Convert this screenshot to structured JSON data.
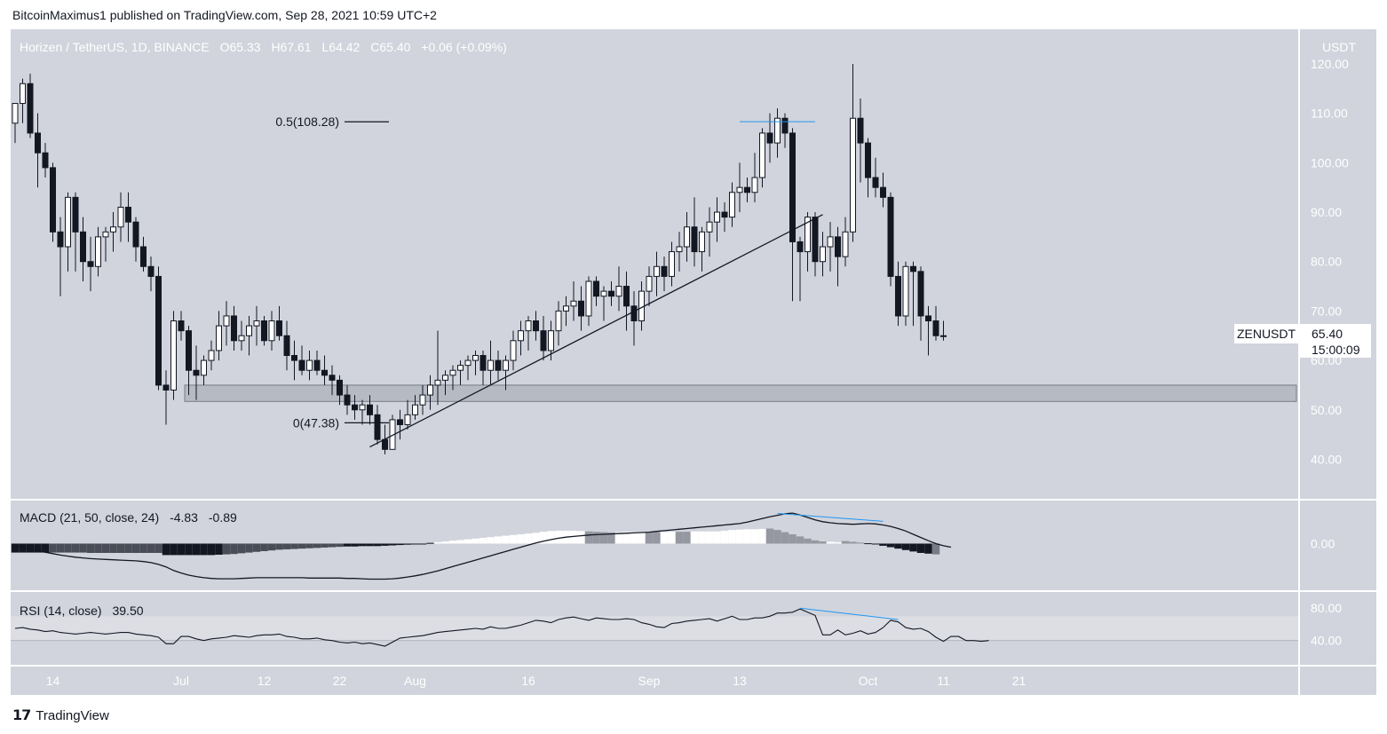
{
  "header": {
    "publisher_line": "BitcoinMaximus1 published on TradingView.com, Sep 28, 2021 10:59 UTC+2"
  },
  "footer": {
    "brand": "TradingView"
  },
  "colors": {
    "panel_bg": "#d1d4dc",
    "zone_fill": "#b2b5be",
    "bull": "#ffffff",
    "bear": "#131722",
    "divergence": "#2196f3",
    "rsi_band": "#dcdee4"
  },
  "chart_data": [
    {
      "type": "candlestick",
      "symbol_line": {
        "name": "Horizen / TetherUS, 1D, BINANCE",
        "o_label": "O",
        "o": "65.33",
        "h_label": "H",
        "h": "67.61",
        "l_label": "L",
        "l": "64.42",
        "c_label": "C",
        "c": "65.40",
        "change": "+0.06 (+0.09%)"
      },
      "currency": "USDT",
      "y_ticks": [
        "120.00",
        "110.00",
        "100.00",
        "90.00",
        "80.00",
        "70.00",
        "60.00",
        "50.00",
        "40.00"
      ],
      "y_tick_values": [
        120,
        110,
        100,
        90,
        80,
        70,
        60,
        50,
        40
      ],
      "ylim": [
        32,
        127
      ],
      "x_ticks": [
        {
          "label": "14",
          "day": 5
        },
        {
          "label": "Jul",
          "day": 22
        },
        {
          "label": "12",
          "day": 33
        },
        {
          "label": "22",
          "day": 43
        },
        {
          "label": "Aug",
          "day": 53
        },
        {
          "label": "16",
          "day": 68
        },
        {
          "label": "Sep",
          "day": 84
        },
        {
          "label": "13",
          "day": 96
        },
        {
          "label": "Oct",
          "day": 113
        },
        {
          "label": "11",
          "day": 123
        },
        {
          "label": "21",
          "day": 133
        }
      ],
      "candles": [
        [
          108,
          112,
          104,
          112
        ],
        [
          112,
          117,
          108,
          116
        ],
        [
          116,
          118,
          105,
          106
        ],
        [
          106,
          110,
          95,
          102
        ],
        [
          102,
          104,
          97,
          99
        ],
        [
          99,
          100,
          84,
          86
        ],
        [
          86,
          89,
          73,
          83
        ],
        [
          83,
          94,
          78,
          93
        ],
        [
          93,
          94,
          78,
          86
        ],
        [
          86,
          89,
          76,
          80
        ],
        [
          80,
          85,
          74,
          79
        ],
        [
          79,
          87,
          77,
          85
        ],
        [
          85,
          87,
          80,
          86
        ],
        [
          86,
          90,
          82,
          87
        ],
        [
          87,
          94,
          84,
          91
        ],
        [
          91,
          94,
          84,
          88
        ],
        [
          88,
          89,
          80,
          83
        ],
        [
          83,
          85,
          78,
          79
        ],
        [
          79,
          81,
          74,
          77
        ],
        [
          77,
          79,
          54,
          55
        ],
        [
          55,
          58,
          47,
          54
        ],
        [
          54,
          70,
          52,
          68
        ],
        [
          68,
          70,
          64,
          66
        ],
        [
          66,
          67,
          53,
          58
        ],
        [
          58,
          63,
          52,
          57
        ],
        [
          57,
          61,
          55,
          60
        ],
        [
          60,
          64,
          58,
          62
        ],
        [
          62,
          70,
          60,
          67
        ],
        [
          67,
          72,
          63,
          69
        ],
        [
          69,
          71,
          62,
          64
        ],
        [
          64,
          68,
          62,
          65
        ],
        [
          65,
          69,
          61,
          67
        ],
        [
          67,
          71,
          63,
          68
        ],
        [
          68,
          69,
          63,
          64
        ],
        [
          64,
          70,
          62,
          68
        ],
        [
          68,
          71,
          64,
          65
        ],
        [
          65,
          68,
          58,
          61
        ],
        [
          61,
          64,
          56,
          60
        ],
        [
          60,
          63,
          57,
          58
        ],
        [
          58,
          62,
          56,
          60
        ],
        [
          60,
          62,
          57,
          58
        ],
        [
          58,
          61,
          55,
          57
        ],
        [
          57,
          59,
          53,
          56
        ],
        [
          56,
          57,
          51,
          53
        ],
        [
          53,
          55,
          49,
          51
        ],
        [
          51,
          53,
          48,
          50
        ],
        [
          50,
          52,
          47,
          51
        ],
        [
          51,
          53,
          47,
          49
        ],
        [
          49,
          51,
          43,
          44
        ],
        [
          44,
          47,
          41,
          42
        ],
        [
          42,
          49,
          42,
          48
        ],
        [
          48,
          50,
          44,
          47
        ],
        [
          47,
          52,
          46,
          49
        ],
        [
          49,
          53,
          48,
          51
        ],
        [
          51,
          55,
          49,
          53
        ],
        [
          53,
          57,
          50,
          55
        ],
        [
          55,
          66,
          51,
          56
        ],
        [
          56,
          58,
          53,
          57
        ],
        [
          57,
          59,
          54,
          58
        ],
        [
          58,
          60,
          55,
          59
        ],
        [
          59,
          61,
          56,
          60
        ],
        [
          60,
          62,
          57,
          61
        ],
        [
          61,
          62,
          55,
          58
        ],
        [
          58,
          64,
          55,
          60
        ],
        [
          60,
          62,
          56,
          58
        ],
        [
          58,
          61,
          54,
          60
        ],
        [
          60,
          66,
          58,
          64
        ],
        [
          64,
          68,
          61,
          66
        ],
        [
          66,
          69,
          62,
          68
        ],
        [
          68,
          70,
          64,
          66
        ],
        [
          66,
          69,
          60,
          62
        ],
        [
          62,
          68,
          60,
          66
        ],
        [
          66,
          72,
          63,
          70
        ],
        [
          70,
          73,
          67,
          71
        ],
        [
          71,
          76,
          68,
          72
        ],
        [
          72,
          75,
          66,
          69
        ],
        [
          69,
          77,
          67,
          76
        ],
        [
          76,
          77,
          71,
          73
        ],
        [
          73,
          75,
          68,
          74
        ],
        [
          74,
          76,
          71,
          73
        ],
        [
          73,
          79,
          70,
          75
        ],
        [
          75,
          78,
          66,
          71
        ],
        [
          71,
          74,
          63,
          68
        ],
        [
          68,
          76,
          66,
          74
        ],
        [
          74,
          79,
          71,
          77
        ],
        [
          77,
          82,
          73,
          79
        ],
        [
          79,
          81,
          74,
          77
        ],
        [
          77,
          84,
          75,
          82
        ],
        [
          82,
          86,
          78,
          83
        ],
        [
          83,
          90,
          80,
          87
        ],
        [
          87,
          93,
          79,
          82
        ],
        [
          82,
          87,
          78,
          86
        ],
        [
          86,
          91,
          81,
          88
        ],
        [
          88,
          93,
          84,
          90
        ],
        [
          90,
          92,
          86,
          89
        ],
        [
          89,
          96,
          87,
          94
        ],
        [
          94,
          100,
          90,
          95
        ],
        [
          95,
          97,
          92,
          94
        ],
        [
          94,
          102,
          92,
          97
        ],
        [
          97,
          107,
          95,
          106
        ],
        [
          106,
          110,
          100,
          104
        ],
        [
          104,
          111,
          101,
          109
        ],
        [
          109,
          110,
          103,
          106
        ],
        [
          106,
          107,
          72,
          84
        ],
        [
          84,
          85,
          72,
          82
        ],
        [
          82,
          90,
          78,
          89
        ],
        [
          89,
          90,
          77,
          80
        ],
        [
          80,
          86,
          77,
          83
        ],
        [
          83,
          88,
          78,
          85
        ],
        [
          85,
          87,
          75,
          81
        ],
        [
          81,
          89,
          79,
          86
        ],
        [
          86,
          120,
          84,
          109
        ],
        [
          109,
          113,
          96,
          104
        ],
        [
          104,
          105,
          93,
          97
        ],
        [
          97,
          101,
          93,
          95
        ],
        [
          95,
          98,
          91,
          93
        ],
        [
          93,
          94,
          75,
          77
        ],
        [
          77,
          80,
          67,
          69
        ],
        [
          69,
          80,
          67,
          79
        ],
        [
          79,
          80,
          67,
          78
        ],
        [
          78,
          79,
          64,
          69
        ],
        [
          69,
          71,
          61,
          68
        ],
        [
          68,
          71,
          64,
          65
        ],
        [
          65,
          68,
          64,
          65
        ]
      ],
      "support_zone": {
        "low": 51.7,
        "high": 55.0
      },
      "trendline": {
        "from": {
          "day": 47,
          "price": 42.5
        },
        "to": {
          "day": 107,
          "price": 89.5
        }
      },
      "fib_levels": [
        {
          "label": "0.5(108.28)",
          "value": 108.28
        },
        {
          "label": "0(47.38)",
          "value": 47.38
        }
      ],
      "double_top_line": {
        "from_day": 96,
        "to_day": 106,
        "price": 108.3
      },
      "price_tag": {
        "symbol": "ZENUSDT",
        "price": "65.40",
        "countdown": "15:00:09",
        "value": 65.4
      }
    },
    {
      "type": "histogram+line",
      "name": "MACD",
      "legend": {
        "title": "MACD (21, 50, close, 24)",
        "value1": "-4.83",
        "value2": "-0.89"
      },
      "y_ticks": [
        "0.00"
      ],
      "y_tick_values": [
        0
      ],
      "ylim": [
        -13,
        12
      ],
      "histogram": [
        -2.5,
        -2.5,
        -2.5,
        -2.5,
        -2.5,
        -2.5,
        -2.5,
        -2.5,
        -2.5,
        -2.5,
        -2.6,
        -2.6,
        -2.6,
        -2.6,
        -2.6,
        -2.6,
        -2.6,
        -2.6,
        -2.6,
        -2.6,
        -3.2,
        -3.2,
        -3.2,
        -3.2,
        -3.2,
        -3.2,
        -3.2,
        -3.1,
        -3.0,
        -2.9,
        -2.7,
        -2.5,
        -2.3,
        -2.1,
        -1.9,
        -1.7,
        -1.6,
        -1.5,
        -1.4,
        -1.3,
        -1.2,
        -1.1,
        -1.0,
        -0.9,
        -0.8,
        -0.8,
        -0.7,
        -0.7,
        -0.7,
        -0.6,
        -0.5,
        -0.4,
        -0.3,
        -0.2,
        -0.1,
        0.2,
        0.4,
        0.6,
        0.8,
        1.0,
        1.2,
        1.4,
        1.6,
        1.8,
        2.0,
        2.2,
        2.4,
        2.6,
        2.8,
        3.0,
        3.3,
        3.5,
        3.6,
        3.6,
        3.6,
        3.5,
        3.4,
        3.3,
        3.2,
        3.1,
        3.2,
        3.3,
        3.3,
        3.3,
        3.2,
        3.2,
        3.2,
        3.3,
        3.3,
        3.3,
        3.4,
        3.4,
        3.4,
        3.4,
        3.6,
        3.8,
        3.9,
        4.0,
        4.0,
        4.1,
        4.2,
        3.8,
        3.2,
        2.6,
        2.0,
        1.4,
        0.9,
        0.6,
        0.5,
        0.4,
        0.7,
        0.5,
        0.3,
        0.1,
        -0.2,
        -0.6,
        -1.0,
        -1.4,
        -1.8,
        -2.2,
        -2.6,
        -2.8,
        -3.0
      ],
      "histogram_shade": [
        "b",
        "b",
        "b",
        "b",
        "b",
        "d",
        "d",
        "d",
        "d",
        "d",
        "d",
        "d",
        "d",
        "d",
        "d",
        "d",
        "d",
        "d",
        "d",
        "d",
        "b",
        "b",
        "b",
        "b",
        "b",
        "b",
        "b",
        "b",
        "d",
        "d",
        "d",
        "d",
        "d",
        "d",
        "d",
        "d",
        "d",
        "d",
        "d",
        "d",
        "d",
        "d",
        "d",
        "d",
        "b",
        "b",
        "b",
        "b",
        "b",
        "b",
        "b",
        "b",
        "b",
        "b",
        "b",
        "b",
        "w",
        "w",
        "w",
        "w",
        "w",
        "w",
        "w",
        "w",
        "w",
        "w",
        "w",
        "w",
        "w",
        "w",
        "w",
        "w",
        "w",
        "w",
        "w",
        "w",
        "g",
        "g",
        "g",
        "g",
        "w",
        "w",
        "w",
        "w",
        "g",
        "g",
        "w",
        "w",
        "g",
        "g",
        "w",
        "w",
        "w",
        "w",
        "w",
        "w",
        "w",
        "w",
        "w",
        "w",
        "g",
        "g",
        "g",
        "g",
        "g",
        "g",
        "g",
        "g",
        "w",
        "w",
        "g",
        "g",
        "g",
        "b",
        "b",
        "b",
        "b",
        "b",
        "b",
        "b",
        "b",
        "b"
      ],
      "macd_line": [
        -0.5,
        -1.0,
        -1.5,
        -2.0,
        -2.4,
        -2.8,
        -3.2,
        -3.5,
        -3.8,
        -4.0,
        -4.2,
        -4.3,
        -4.4,
        -4.5,
        -4.6,
        -4.7,
        -4.8,
        -5.0,
        -5.3,
        -5.8,
        -6.5,
        -7.5,
        -8.2,
        -8.8,
        -9.2,
        -9.5,
        -9.7,
        -9.8,
        -9.8,
        -9.8,
        -9.7,
        -9.6,
        -9.5,
        -9.5,
        -9.5,
        -9.5,
        -9.5,
        -9.5,
        -9.5,
        -9.6,
        -9.6,
        -9.6,
        -9.6,
        -9.6,
        -9.7,
        -9.7,
        -9.8,
        -9.9,
        -9.9,
        -9.9,
        -9.8,
        -9.6,
        -9.3,
        -9.0,
        -8.6,
        -8.1,
        -7.6,
        -7.0,
        -6.4,
        -5.8,
        -5.2,
        -4.6,
        -4.0,
        -3.4,
        -2.8,
        -2.2,
        -1.6,
        -1.0,
        -0.4,
        0.2,
        0.7,
        1.1,
        1.5,
        1.8,
        2.0,
        2.2,
        2.4,
        2.5,
        2.6,
        2.7,
        2.8,
        2.9,
        3.0,
        3.1,
        3.2,
        3.4,
        3.6,
        3.8,
        4.0,
        4.2,
        4.4,
        4.6,
        4.8,
        5.0,
        5.2,
        5.4,
        5.6,
        6.0,
        6.5,
        7.0,
        7.5,
        7.9,
        8.3,
        8.5,
        8.0,
        7.3,
        6.6,
        6.1,
        5.8,
        5.6,
        5.5,
        5.4,
        5.5,
        5.6,
        5.5,
        5.2,
        4.8,
        4.2,
        3.5,
        2.6,
        1.7,
        0.8,
        0.0,
        -0.6,
        -1.0
      ],
      "divergence_line": {
        "from": {
          "day": 101,
          "value": 8.4
        },
        "to": {
          "day": 115,
          "value": 6.2
        }
      }
    },
    {
      "type": "line",
      "name": "RSI",
      "legend": {
        "title": "RSI (14, close)",
        "value": "39.50"
      },
      "y_ticks": [
        "80.00",
        "40.00"
      ],
      "y_tick_values": [
        80,
        40
      ],
      "ylim": [
        10,
        100
      ],
      "band": [
        40,
        70
      ],
      "rsi": [
        55,
        56,
        54,
        53,
        51,
        52,
        50,
        49,
        48,
        49,
        50,
        49,
        48,
        49,
        50,
        50,
        48,
        47,
        46,
        44,
        36,
        36,
        45,
        45,
        42,
        40,
        42,
        43,
        44,
        46,
        45,
        44,
        46,
        47,
        47,
        48,
        45,
        44,
        42,
        42,
        43,
        41,
        40,
        38,
        37,
        38,
        36,
        37,
        35,
        33,
        38,
        43,
        44,
        45,
        46,
        48,
        50,
        51,
        52,
        53,
        54,
        55,
        54,
        57,
        55,
        55,
        57,
        59,
        62,
        65,
        64,
        62,
        66,
        68,
        69,
        67,
        65,
        68,
        67,
        66,
        66,
        67,
        66,
        62,
        60,
        57,
        56,
        61,
        62,
        64,
        65,
        66,
        67,
        64,
        67,
        70,
        66,
        66,
        68,
        68,
        70,
        74,
        74,
        75,
        79,
        75,
        71,
        47,
        47,
        53,
        47,
        49,
        52,
        48,
        50,
        56,
        65,
        63,
        56,
        54,
        55,
        51,
        44,
        39,
        45,
        45,
        40,
        40,
        39,
        40
      ]
    }
  ]
}
